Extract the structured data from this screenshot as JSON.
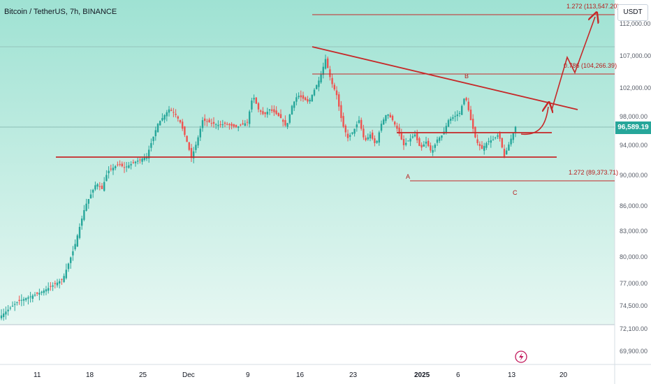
{
  "header": {
    "symbol_title": "Bitcoin / TetherUS, 7h, BINANCE",
    "unit_label": "USDT"
  },
  "colors": {
    "up": "#26a69a",
    "down": "#ef5350",
    "drawing": "#c62828",
    "background_top": "#9fe2d3",
    "background_bottom": "#e6f7f2"
  },
  "chart_data": {
    "type": "candlestick",
    "title": "Bitcoin / TetherUS, 7h, BINANCE",
    "xlabel": "",
    "ylabel": "",
    "unit": "USDT",
    "last_price": 96589.19,
    "last_price_label": "96,589.19",
    "y_ticks": [
      {
        "value": 112000,
        "label": "112,000.00"
      },
      {
        "value": 107000,
        "label": "107,000.00"
      },
      {
        "value": 102000,
        "label": "102,000.00"
      },
      {
        "value": 98000,
        "label": "98,000.00"
      },
      {
        "value": 94000,
        "label": "94,000.00"
      },
      {
        "value": 90000,
        "label": "90,000.00"
      },
      {
        "value": 86000,
        "label": "86,000.00"
      },
      {
        "value": 83000,
        "label": "83,000.00"
      },
      {
        "value": 80000,
        "label": "80,000.00"
      },
      {
        "value": 77000,
        "label": "77,000.00"
      },
      {
        "value": 74500,
        "label": "74,500.00"
      },
      {
        "value": 72100,
        "label": "72,100.00"
      },
      {
        "value": 69900,
        "label": "69,900.00"
      }
    ],
    "x_ticks": [
      {
        "label": "11",
        "bold": false
      },
      {
        "label": "18",
        "bold": false
      },
      {
        "label": "25",
        "bold": false
      },
      {
        "label": "Dec",
        "bold": false
      },
      {
        "label": "9",
        "bold": false
      },
      {
        "label": "16",
        "bold": false
      },
      {
        "label": "23",
        "bold": false
      },
      {
        "label": "2025",
        "bold": true
      },
      {
        "label": "6",
        "bold": false
      },
      {
        "label": "13",
        "bold": false
      },
      {
        "label": "20",
        "bold": false
      }
    ],
    "price_path": [
      [
        0,
        73500
      ],
      [
        3,
        75000
      ],
      [
        5,
        75500
      ],
      [
        7,
        76000
      ],
      [
        9,
        76700
      ],
      [
        11,
        77500
      ],
      [
        13,
        81000
      ],
      [
        15,
        86000
      ],
      [
        17,
        89000
      ],
      [
        18,
        88200
      ],
      [
        19,
        90500
      ],
      [
        21,
        91500
      ],
      [
        22,
        91000
      ],
      [
        24,
        91800
      ],
      [
        26,
        92500
      ],
      [
        28,
        97000
      ],
      [
        30,
        99000
      ],
      [
        31,
        98500
      ],
      [
        32,
        97200
      ],
      [
        33,
        95000
      ],
      [
        34,
        92300
      ],
      [
        35,
        94500
      ],
      [
        36,
        97500
      ],
      [
        38,
        97000
      ],
      [
        39,
        96800
      ],
      [
        40,
        97000
      ],
      [
        42,
        96500
      ],
      [
        44,
        97200
      ],
      [
        45,
        101000
      ],
      [
        46,
        99000
      ],
      [
        47,
        98200
      ],
      [
        48,
        99000
      ],
      [
        49,
        98500
      ],
      [
        50,
        97800
      ],
      [
        51,
        96500
      ],
      [
        52,
        99500
      ],
      [
        53,
        101000
      ],
      [
        54,
        100500
      ],
      [
        55,
        100000
      ],
      [
        57,
        103500
      ],
      [
        58,
        106500
      ],
      [
        59,
        103000
      ],
      [
        60,
        101000
      ],
      [
        61,
        97000
      ],
      [
        62,
        95000
      ],
      [
        63,
        96000
      ],
      [
        64,
        97500
      ],
      [
        65,
        94500
      ],
      [
        66,
        95500
      ],
      [
        67,
        94000
      ],
      [
        68,
        97000
      ],
      [
        69,
        98500
      ],
      [
        70,
        97500
      ],
      [
        71,
        96000
      ],
      [
        72,
        94000
      ],
      [
        73,
        94800
      ],
      [
        74,
        95500
      ],
      [
        75,
        93500
      ],
      [
        76,
        94500
      ],
      [
        77,
        93000
      ],
      [
        78,
        94800
      ],
      [
        79,
        95500
      ],
      [
        80,
        97500
      ],
      [
        81,
        98000
      ],
      [
        82,
        98500
      ],
      [
        83,
        101000
      ],
      [
        84,
        97500
      ],
      [
        85,
        94500
      ],
      [
        86,
        93500
      ],
      [
        87,
        94500
      ],
      [
        88,
        94800
      ],
      [
        89,
        95500
      ],
      [
        90,
        92500
      ],
      [
        91,
        94500
      ],
      [
        92,
        96589
      ]
    ],
    "annotations": [
      {
        "kind": "fib_level",
        "label": "1.272 (113,547.20)",
        "price": 113547.2
      },
      {
        "kind": "fib_level",
        "label": "0.786 (104,266.39)",
        "price": 104266.39
      },
      {
        "kind": "fib_level",
        "label": "1.272 (89,373.71)",
        "price": 89373.71
      },
      {
        "kind": "wave_label",
        "label": "A",
        "price": 90600
      },
      {
        "kind": "wave_label",
        "label": "B",
        "price": 103100
      },
      {
        "kind": "wave_label",
        "label": "C",
        "price": 89000
      },
      {
        "kind": "support_line",
        "price": 92900
      },
      {
        "kind": "resistance_line",
        "price": 95700
      }
    ],
    "grid": false,
    "legend": "none"
  }
}
